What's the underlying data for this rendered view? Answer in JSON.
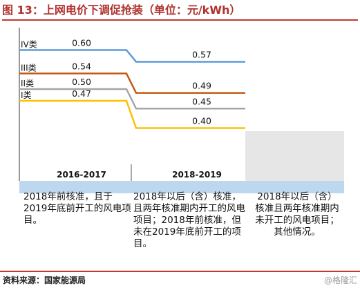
{
  "title": "图 13：上网电价下调促抢装（单位：元/kWh）",
  "chart_data": {
    "type": "line",
    "categories": [
      "2016-2017",
      "2018-2019"
    ],
    "series": [
      {
        "name": "IV类",
        "values": [
          0.6,
          0.57
        ],
        "color": "#5b9bd5"
      },
      {
        "name": "III类",
        "values": [
          0.54,
          0.49
        ],
        "color": "#c55a11"
      },
      {
        "name": "II类",
        "values": [
          0.5,
          0.45
        ],
        "color": "#a5a5a5"
      },
      {
        "name": "I类",
        "values": [
          0.47,
          0.4
        ],
        "color": "#ffc000"
      }
    ],
    "value_labels": [
      {
        "series": 0,
        "period": 0,
        "text": "0.60"
      },
      {
        "series": 0,
        "period": 1,
        "text": "0.57"
      },
      {
        "series": 1,
        "period": 0,
        "text": "0.54"
      },
      {
        "series": 1,
        "period": 1,
        "text": "0.49"
      },
      {
        "series": 2,
        "period": 0,
        "text": "0.50"
      },
      {
        "series": 2,
        "period": 1,
        "text": "0.45"
      },
      {
        "series": 3,
        "period": 0,
        "text": "0.47"
      },
      {
        "series": 3,
        "period": 1,
        "text": "0.40"
      }
    ],
    "period_conditions": [
      "2018年前核准，且于2019年底前开工的风电项目。",
      "2018年以后（含）核准，且两年核准期内开工的风电项目；2018年前核准，但未在2019年底前开工的项目。",
      "2018年以后（含）核准且两年核准期内未开工的风电项目；其他情况。"
    ],
    "colors": {
      "axis_band": "#bdd7ee",
      "future_zone": "#e7e6e6",
      "axis_line": "#555555"
    }
  },
  "footer": {
    "source": "资料来源：国家能源局",
    "watermark": "@格隆汇"
  }
}
